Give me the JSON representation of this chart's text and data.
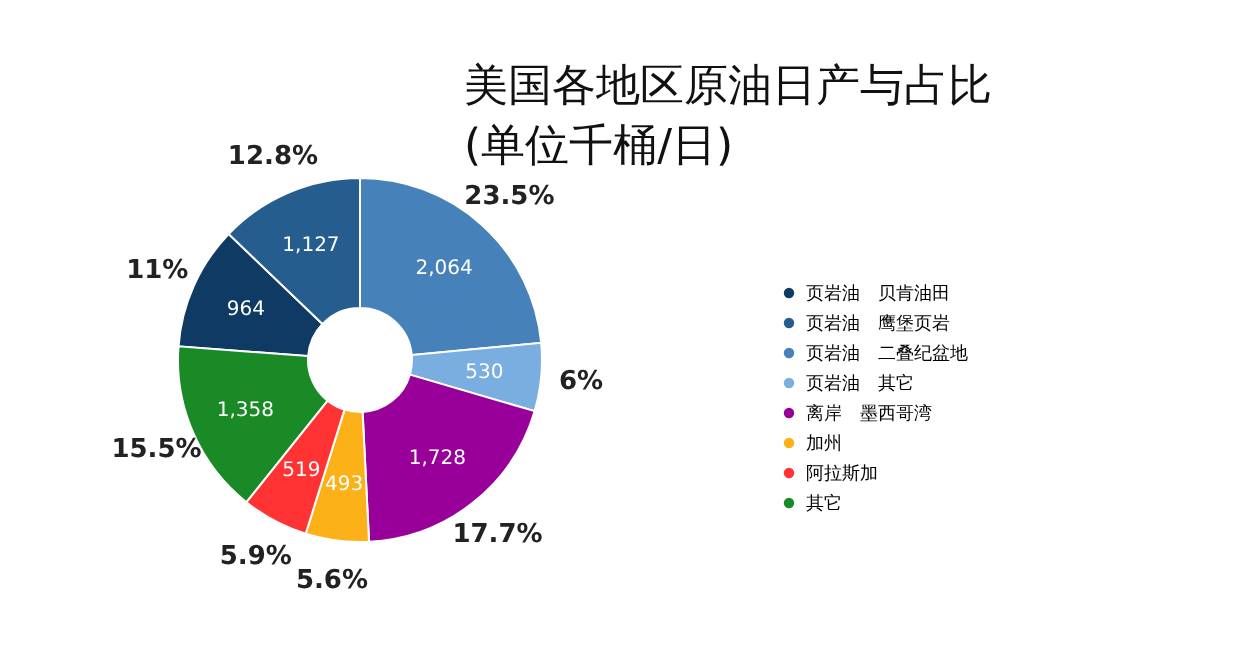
{
  "chart_data": {
    "type": "donut",
    "title": "美国各地区原油日产与占比\n(单位千桶/日)",
    "categories": [
      "页岩油　贝肯油田",
      "页岩油　鹰堡页岩",
      "页岩油　二叠纪盆地",
      "页岩油　其它",
      "离岸　墨西哥湾",
      "加州",
      "阿拉斯加",
      "其它"
    ],
    "values": [
      964,
      1127,
      2064,
      530,
      1728,
      493,
      519,
      1358
    ],
    "colors": [
      "#0e3a63",
      "#255d8f",
      "#4682b9",
      "#7aaee0",
      "#990099",
      "#fbb117",
      "#ff3333",
      "#1a8a27"
    ],
    "value_labels": [
      "964",
      "1,127",
      "2,064",
      "530",
      "1,728",
      "493",
      "519",
      "1,358"
    ],
    "annotations": [
      "11%",
      "12.8%",
      "23.5%",
      "6%",
      "17.7%",
      "5.6%",
      "5.9%",
      "15.5%"
    ],
    "legend": "right"
  }
}
